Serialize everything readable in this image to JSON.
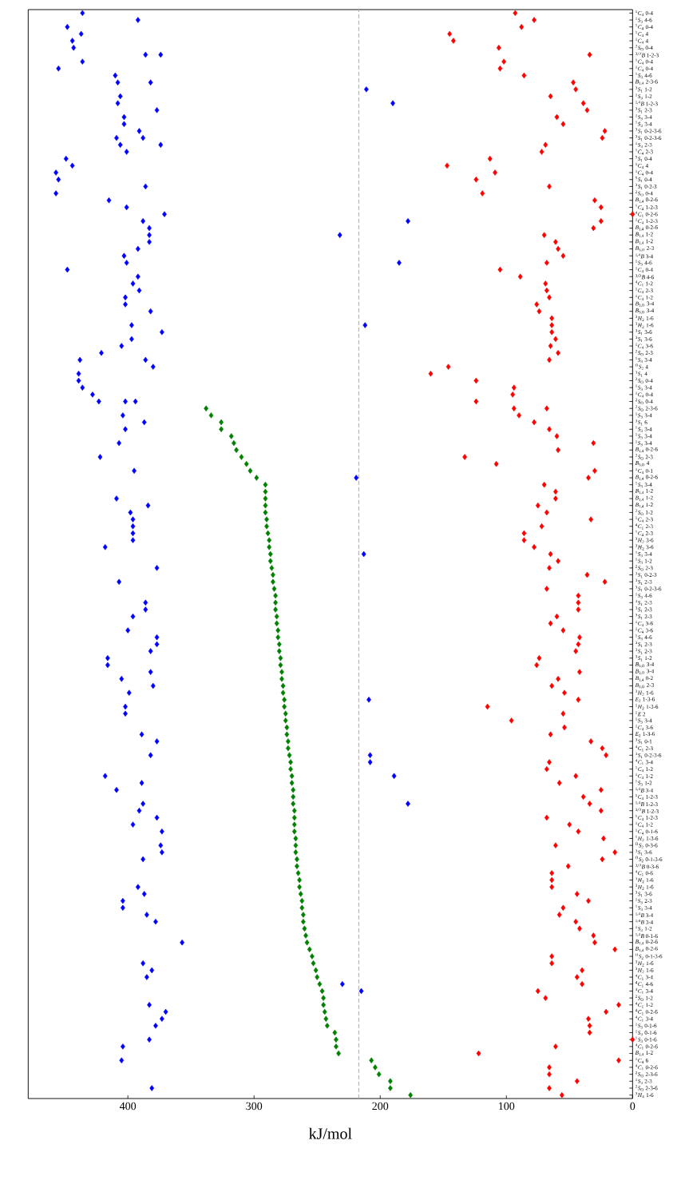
{
  "chart_data": {
    "type": "scatter",
    "orientation": "horizontal",
    "marker": "diamond",
    "xlabel": "kJ/mol",
    "xlim": [
      479,
      0
    ],
    "xticks": [
      400,
      300,
      200,
      100,
      0
    ],
    "categories": [
      "$^{1}$*C*$_{4}$ 0-4",
      "$^{1}$*S*$_{3}$ 4-6",
      "$^{1}$*C*$_{4}$ 0-4",
      "$^{1}$*C*$_{4}$ 4",
      "$^{1}$*C*$_{4}$ 4",
      "$^{2}$*S*$_{O}$ 0-4",
      "$^{3,O}$*B* 1-2-3",
      "$^{1}$*C*$_{4}$ 0-4",
      "$^{1}$*C*$_{4}$ 0-4",
      "$^{1}$*S*$_{3}$ 4-6",
      "*B*$_{1,4}$ 2-3-6",
      "$^{3}$*S*$_{1}$ 1-2",
      "$^{1}$*S*$_{3}$ 1-2",
      "$^{1,4}$*B* 1-2-3",
      "$^{3}$*S*$_{1}$ 2-3",
      "$^{1}$*S*$_{3}$ 3-4",
      "$^{1}$*S*$_{3}$ 3-4",
      "$^{3}$*S*$_{1}$ 0-2-3-6",
      "$^{3}$*S*$_{1}$ 0-2-3-6",
      "$^{1}$*S*$_{3}$ 2-3",
      "$^{1}$*C*$_{4}$ 2-3",
      "$^{5}$*S*$_{1}$ 0-4",
      "$^{1}$*C*$_{4}$ 4",
      "$^{1}$*C*$_{4}$ 0-4",
      "$^{5}$*S*$_{1}$ 0-4",
      "$^{3}$*S*$_{1}$ 0-2-3",
      "$^{2}$*S*$_{O}$ 0-4",
      "*B*$_{1,4}$ 0-2-6",
      "$^{1}$*C*$_{4}$ 1-2-3",
      "$^{4}$*C*$_{1}$ 0-2-6",
      "$^{1}$*C*$_{4}$ 1-2-3",
      "*B*$_{1,4}$ 0-2-6",
      "*B*$_{1,4}$ 1-2",
      "*B*$_{1,4}$ 1-2",
      "*B*$_{3,O}$ 2-3",
      "$^{1,4}$*B* 3-4",
      "$^{1}$*S*$_{3}$ 4-6",
      "$^{1}$*C*$_{4}$ 0-4",
      "$^{3,O}$*B* 4-6",
      "$^{4}$*C*$_{1}$ 1-2",
      "$^{1}$*C*$_{4}$ 2-3",
      "$^{1}$*C*$_{4}$ 1-2",
      "*B*$_{3,O}$ 3-4",
      "*B*$_{3,O}$ 3-4",
      "$^{3}$*H*$_{2}$ 1-6",
      "$^{3}$*H*$_{2}$ 1-6",
      "$^{3}$*S*$_{1}$ 3-6",
      "$^{3}$*S*$_{1}$ 3-6",
      "$^{1}$*C*$_{4}$ 3-6",
      "$^{2}$*S*$_{O}$ 2-3",
      "$^{1}$*S*$_{3}$ 3-4",
      "$^{O}$*S*$_{2}$ 4",
      "$^{3}$*S*$_{1}$ 4",
      "$^{2}$*S*$_{O}$ 0-4",
      "$^{1}$*S*$_{3}$ 3-4",
      "$^{1}$*C*$_{4}$ 0-4",
      "$^{2}$*S*$_{O}$ 0-4",
      "$^{2}$*S*$_{O}$ 2-3-6",
      "$^{1}$*S*$_{3}$ 3-4",
      "$^{3}$*S*$_{1}$ 6",
      "$^{1}$*S*$_{3}$ 3-4",
      "$^{1}$*S*$_{3}$ 3-4",
      "$^{1}$*S*$_{3}$ 3-4",
      "*B*$_{1,4}$ 0-2-6",
      "$^{2}$*S*$_{O}$ 2-3",
      "*B*$_{3,O}$ 4",
      "$^{1}$*C*$_{4}$ 0-1",
      "*B*$_{1,4}$ 0-2-6",
      "$^{1}$*S*$_{3}$ 3-4",
      "*B*$_{1,4}$ 1-2",
      "*B*$_{1,4}$ 1-2",
      "*B*$_{1,4}$ 1-2",
      "$^{2}$*S*$_{O}$ 1-2",
      "$^{1}$*C*$_{4}$ 2-3",
      "$^{4}$*C*$_{1}$ 2-3",
      "$^{1}$*C*$_{4}$ 2-3",
      "$^{3}$*H*$_{2}$ 3-6",
      "$^{3}$*H*$_{2}$ 3-6",
      "$^{1}$*S*$_{3}$ 3-4",
      "$^{1}$*S*$_{3}$ 1-2",
      "$^{2}$*S*$_{O}$ 2-3",
      "$^{3}$*S*$_{1}$ 0-2-3",
      "$^{3}$*S*$_{1}$ 2-3",
      "$^{3}$*S*$_{1}$ 0-2-3-6",
      "$^{1}$*S*$_{3}$ 4-6",
      "$^{3}$*S*$_{1}$ 2-3",
      "$^{3}$*S*$_{1}$ 2-3",
      "$^{3}$*S*$_{1}$ 2-3",
      "$^{1}$*C*$_{4}$ 3-6",
      "$^{1}$*C*$_{4}$ 3-6",
      "$^{1}$*S*$_{3}$ 4-6",
      "$^{3}$*S*$_{1}$ 2-3",
      "$^{3}$*S*$_{1}$ 2-3",
      "$^{3}$*S*$_{1}$ 1-2",
      "*B*$_{3,O}$ 3-4",
      "*B*$_{3,O}$ 3-4",
      "*B*$_{1,4}$ 0-2",
      "*B*$_{3,O}$ 2-3",
      "$^{3}$*H*$_{2}$ 1-6",
      "*E*$_{2}$ 1-3-6",
      "$^{1}$*H*$_{2}$ 1-3-6",
      "$^{1}$*E* 2",
      "$^{1}$*S*$_{3}$ 3-4",
      "$^{1}$*C*$_{4}$ 3-6",
      "*E*$_{2}$ 1-3-6",
      "$^{3}$*S*$_{1}$ 0-1",
      "$^{4}$*C*$_{1}$ 2-3",
      "$^{3}$*S*$_{1}$ 0-2-3-6",
      "$^{4}$*C*$_{1}$ 3-4",
      "$^{1}$*C*$_{4}$ 1-2",
      "$^{1}$*C*$_{4}$ 1-2",
      "$^{1}$*S*$_{3}$ 1-2",
      "$^{1,4}$*B* 3-4",
      "$^{1}$*C*$_{4}$ 1-2-3",
      "$^{1,4}$*B* 1-2-3",
      "$^{3,O}$*B* 1-2-3",
      "$^{1}$*C*$_{4}$ 1-2-3",
      "$^{1}$*C*$_{4}$ 1-2",
      "$^{1}$*C*$_{4}$ 0-1-6",
      "$^{1}$*H*$_{2}$ 1-3-6",
      "$^{O}$*S*$_{2}$ 0-3-6",
      "$^{3}$*S*$_{1}$ 3-6",
      "$^{O}$*S*$_{2}$ 0-1-3-6",
      "$^{3,O}$*B* 0-3-6",
      "$^{4}$*C*$_{1}$ 0-6",
      "$^{3}$*H*$_{2}$ 1-6",
      "$^{3}$*H*$_{2}$ 1-6",
      "$^{3}$*S*$_{1}$ 3-6",
      "$^{1}$*S*$_{3}$ 2-3",
      "$^{1}$*S*$_{3}$ 3-4",
      "$^{1,4}$*B* 3-4",
      "$^{1,4}$*B* 3-4",
      "$^{1}$*S*$_{3}$ 1-2",
      "$^{1,4}$*B* 0-1-6",
      "*B*$_{1,4}$ 0-2-6",
      "*B*$_{1,4}$ 0-2-6",
      "$^{O}$*S*$_{2}$ 0-1-3-6",
      "$^{3}$*H*$_{2}$ 1-6",
      "$^{3}$*H*$_{2}$ 1-6",
      "$^{4}$*C*$_{1}$ 3-4",
      "$^{4}$*C*$_{1}$ 4-6",
      "$^{4}$*C*$_{1}$ 3-4",
      "$^{2}$*S*$_{O}$ 1-2",
      "$^{4}$*C*$_{1}$ 1-2",
      "$^{4}$*C*$_{1}$ 0-2-6",
      "$^{4}$*C*$_{1}$ 3-4",
      "$^{1}$*S*$_{3}$ 0-1-6",
      "$^{1}$*S*$_{3}$ 0-1-6",
      "$^{1}$*S*$_{3}$ 0-1-6",
      "$^{4}$*C*$_{1}$ 0-2-6",
      "*B*$_{1,4}$ 1-2",
      "$^{1}$*C*$_{4}$ 6",
      "$^{4}$*C*$_{1}$ 0-2-6",
      "$^{2}$*S*$_{O}$ 2-3-6",
      "$^{1}$*S*$_{3}$ 2-3",
      "$^{2}$*S*$_{O}$ 2-3-6",
      "$^{3}$*H*$_{4}$ 1-6"
    ],
    "series": [
      {
        "color": "#0000ff",
        "values": [
          436,
          392,
          448,
          437,
          444,
          443,
          386,
          436,
          455,
          410,
          408,
          null,
          406,
          408,
          377,
          403,
          403,
          391,
          409,
          406,
          401,
          449,
          444,
          457,
          455,
          386,
          457,
          415,
          401,
          371,
          388,
          383,
          383,
          383,
          392,
          403,
          401,
          448,
          392,
          396,
          391,
          402,
          402,
          382,
          null,
          397,
          373,
          397,
          405,
          421,
          438,
          380,
          439,
          439,
          436,
          428,
          423,
          null,
          404,
          387,
          402,
          null,
          407,
          null,
          422,
          null,
          395,
          null,
          null,
          null,
          409,
          384,
          398,
          396,
          396,
          396,
          396,
          418,
          null,
          null,
          377,
          null,
          407,
          null,
          null,
          386,
          386,
          396,
          null,
          400,
          377,
          377,
          382,
          416,
          416,
          382,
          405,
          380,
          399,
          null,
          402,
          402,
          null,
          null,
          389,
          377,
          null,
          382,
          null,
          null,
          418,
          389,
          409,
          null,
          388,
          391,
          377,
          396,
          373,
          null,
          374,
          373,
          388,
          null,
          null,
          null,
          392,
          387,
          404,
          404,
          385,
          378,
          null,
          null,
          357,
          null,
          null,
          388,
          381,
          385,
          null,
          null,
          null,
          383,
          370,
          373,
          378,
          null,
          383,
          404,
          null,
          405,
          null,
          null,
          null,
          381,
          null
        ]
      },
      {
        "color": "#0000ff",
        "values": [
          null,
          null,
          null,
          null,
          null,
          null,
          374,
          null,
          null,
          null,
          382,
          211,
          null,
          190,
          null,
          null,
          null,
          null,
          388,
          374,
          null,
          null,
          null,
          null,
          null,
          null,
          null,
          null,
          null,
          null,
          178,
          null,
          232,
          null,
          null,
          null,
          185,
          null,
          null,
          null,
          null,
          null,
          null,
          null,
          null,
          212,
          null,
          null,
          null,
          null,
          386,
          null,
          null,
          null,
          null,
          null,
          402,
          null,
          null,
          null,
          null,
          null,
          null,
          null,
          null,
          null,
          null,
          219,
          null,
          null,
          null,
          null,
          null,
          null,
          null,
          null,
          null,
          null,
          213,
          null,
          null,
          null,
          null,
          null,
          null,
          null,
          null,
          null,
          null,
          null,
          null,
          null,
          null,
          null,
          null,
          null,
          null,
          null,
          null,
          209,
          null,
          null,
          null,
          null,
          null,
          null,
          null,
          208,
          208,
          null,
          189,
          null,
          null,
          null,
          178,
          null,
          null,
          null,
          null,
          null,
          null,
          null,
          null,
          null,
          null,
          null,
          null,
          null,
          null,
          null,
          null,
          null,
          null,
          null,
          null,
          null,
          null,
          null,
          null,
          null,
          230,
          215,
          null,
          null,
          null,
          null,
          null,
          null,
          null,
          null,
          null,
          null,
          null,
          null,
          null,
          null,
          null
        ]
      },
      {
        "color": "#0000ff",
        "values": [
          null,
          null,
          null,
          null,
          null,
          null,
          null,
          null,
          null,
          null,
          null,
          null,
          null,
          null,
          null,
          null,
          null,
          null,
          null,
          null,
          null,
          null,
          null,
          null,
          null,
          null,
          null,
          null,
          null,
          null,
          null,
          null,
          null,
          null,
          null,
          null,
          null,
          null,
          null,
          null,
          null,
          null,
          null,
          null,
          null,
          null,
          null,
          null,
          null,
          null,
          null,
          null,
          null,
          null,
          null,
          null,
          394,
          null,
          null,
          null,
          null,
          null,
          null,
          null,
          null,
          null,
          null,
          null,
          null,
          null,
          null,
          null,
          null,
          null,
          null,
          null,
          null,
          null,
          null,
          null,
          null,
          null,
          null,
          null,
          null,
          null,
          null,
          null,
          null,
          null,
          null,
          null,
          null,
          null,
          null,
          null,
          null,
          null,
          null,
          null,
          null,
          null,
          null,
          null,
          null,
          null,
          null,
          null,
          null,
          null,
          null,
          null,
          null,
          null,
          null,
          null,
          null,
          null,
          null,
          null,
          null,
          null,
          null,
          null,
          null,
          null,
          null,
          null,
          null,
          null,
          null,
          null,
          null,
          null,
          null,
          null,
          null,
          null,
          null,
          null,
          null,
          null,
          null,
          null,
          null,
          null,
          null,
          null,
          null,
          null,
          null,
          null,
          null,
          null,
          null,
          null,
          null
        ]
      },
      {
        "color": "#ff0000",
        "values": [
          93,
          78,
          88,
          145,
          142,
          106,
          34,
          102,
          105,
          86,
          47,
          45,
          65,
          39,
          36,
          60,
          55,
          22,
          24,
          69,
          72,
          113,
          147,
          109,
          124,
          66,
          119,
          30,
          25,
          0,
          25,
          31,
          70,
          61,
          59,
          55,
          68,
          105,
          89,
          69,
          68,
          66,
          76,
          74,
          64,
          64,
          64,
          61,
          65,
          59,
          66,
          146,
          160,
          124,
          94,
          95,
          124,
          94,
          90,
          78,
          66,
          60,
          31,
          59,
          133,
          108,
          30,
          35,
          70,
          61,
          61,
          75,
          68,
          33,
          72,
          86,
          86,
          78,
          65,
          59,
          66,
          36,
          22,
          68,
          43,
          43,
          43,
          60,
          65,
          55,
          42,
          43,
          45,
          74,
          76,
          42,
          59,
          64,
          54,
          43,
          115,
          55,
          96,
          54,
          65,
          33,
          24,
          21,
          66,
          68,
          45,
          58,
          25,
          39,
          34,
          25,
          68,
          50,
          43,
          23,
          61,
          14,
          24,
          51,
          64,
          64,
          64,
          44,
          35,
          55,
          58,
          45,
          42,
          31,
          30,
          14,
          64,
          64,
          40,
          44,
          40,
          75,
          69,
          11,
          21,
          35,
          34,
          34,
          0,
          61,
          122,
          11,
          66,
          66,
          44,
          66,
          56
        ]
      },
      {
        "color": "#ff0000",
        "values": [
          null,
          null,
          null,
          null,
          null,
          null,
          null,
          null,
          null,
          null,
          null,
          null,
          null,
          null,
          null,
          null,
          null,
          null,
          null,
          null,
          null,
          null,
          null,
          null,
          null,
          null,
          null,
          null,
          null,
          null,
          null,
          null,
          null,
          null,
          null,
          null,
          null,
          null,
          null,
          null,
          null,
          null,
          null,
          null,
          null,
          null,
          null,
          null,
          null,
          null,
          null,
          null,
          null,
          null,
          null,
          null,
          null,
          68,
          null,
          null,
          null,
          null,
          null,
          null,
          null,
          null,
          null,
          null,
          null,
          null,
          null,
          null,
          null,
          null,
          null,
          null,
          null,
          null,
          null,
          null,
          null,
          null,
          null,
          null,
          null,
          null,
          null,
          null,
          null,
          null,
          null,
          null,
          null,
          null,
          null,
          null,
          null,
          null,
          null,
          null,
          null,
          null,
          null,
          null,
          null,
          null,
          null,
          null,
          null,
          null,
          null,
          null,
          null,
          null,
          null,
          null,
          null,
          null,
          null,
          null,
          null,
          null,
          null,
          null,
          null,
          null,
          null,
          null,
          null,
          null,
          null,
          null,
          null,
          null,
          null,
          null,
          null,
          null,
          null,
          null,
          null,
          null,
          null,
          null,
          null,
          null,
          null,
          null,
          null,
          null,
          null,
          null,
          null,
          null,
          null,
          null,
          null
        ]
      },
      {
        "color": "#008000",
        "values": [
          null,
          null,
          null,
          null,
          null,
          null,
          null,
          null,
          null,
          null,
          null,
          null,
          null,
          null,
          null,
          null,
          null,
          null,
          null,
          null,
          null,
          null,
          null,
          null,
          null,
          null,
          null,
          null,
          null,
          null,
          null,
          null,
          null,
          null,
          null,
          null,
          null,
          null,
          null,
          null,
          null,
          null,
          null,
          null,
          null,
          null,
          null,
          null,
          null,
          null,
          null,
          null,
          null,
          null,
          null,
          null,
          null,
          338,
          334,
          326,
          326,
          318,
          316,
          314,
          310,
          306,
          303,
          298,
          291,
          291,
          291,
          291,
          291,
          290,
          290,
          289,
          288,
          288,
          287,
          287,
          286,
          285,
          285,
          284,
          283,
          283,
          283,
          282,
          282,
          281,
          281,
          280,
          280,
          279,
          279,
          278,
          278,
          277,
          277,
          276,
          276,
          275,
          275,
          274,
          274,
          273,
          273,
          272,
          271,
          271,
          270,
          270,
          269,
          269,
          269,
          268,
          268,
          268,
          268,
          267,
          267,
          267,
          266,
          266,
          265,
          264,
          264,
          263,
          262,
          262,
          261,
          261,
          260,
          259,
          258,
          256,
          254,
          253,
          251,
          250,
          248,
          246,
          245,
          245,
          244,
          243,
          242,
          236,
          235,
          235,
          233,
          207,
          204,
          201,
          192,
          192,
          176
        ]
      }
    ],
    "ref_lines": [
      {
        "axis": "x",
        "value": 217,
        "color": "#b0b0b0",
        "line_style": "dashed"
      }
    ]
  }
}
